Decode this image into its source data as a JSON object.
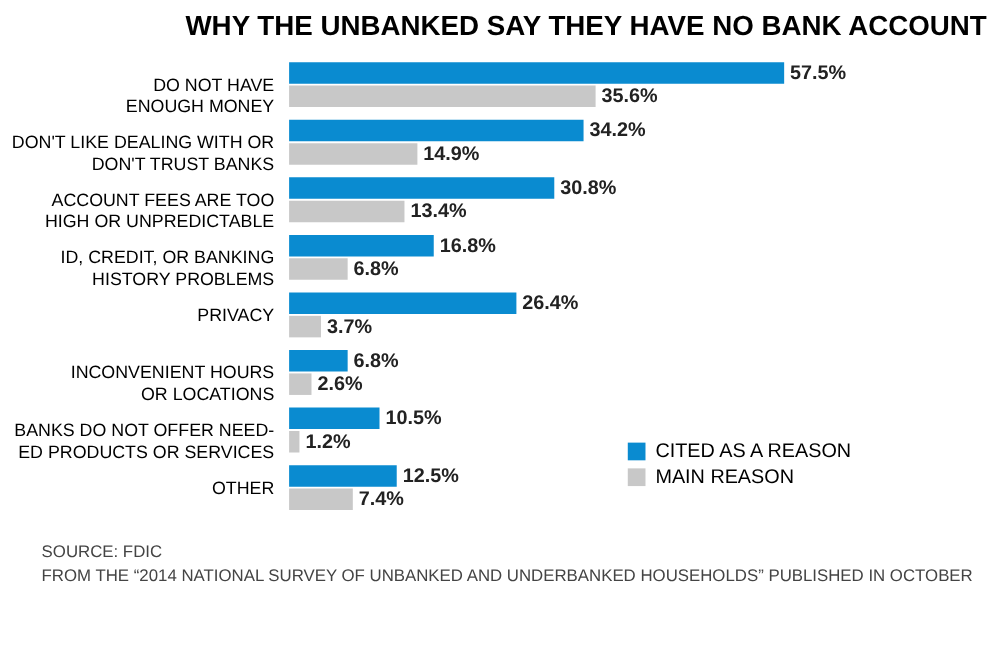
{
  "chart_data": {
    "type": "bar",
    "orientation": "horizontal",
    "title": "WHY THE UNBANKED SAY THEY HAVE NO BANK ACCOUNT",
    "categories": [
      "DO NOT HAVE\nENOUGH MONEY",
      "DON'T LIKE DEALING WITH OR\nDON'T TRUST BANKS",
      "ACCOUNT FEES ARE TOO\nHIGH OR UNPREDICTABLE",
      "ID, CREDIT, OR BANKING\nHISTORY PROBLEMS",
      "PRIVACY",
      "INCONVENIENT HOURS\nOR LOCATIONS",
      "BANKS DO NOT OFFER NEED-\nED PRODUCTS OR SERVICES",
      "OTHER"
    ],
    "series": [
      {
        "name": "CITED AS A REASON",
        "color": "#0a8bd0",
        "values": [
          57.5,
          34.2,
          30.8,
          16.8,
          26.4,
          6.8,
          10.5,
          12.5
        ],
        "value_labels": [
          "57.5%",
          "34.2%",
          "30.8%",
          "16.8%",
          "26.4%",
          "6.8%",
          "10.5%",
          "12.5%"
        ]
      },
      {
        "name": "MAIN REASON",
        "color": "#c8c8c8",
        "values": [
          35.6,
          14.9,
          13.4,
          6.8,
          3.7,
          2.6,
          1.2,
          7.4
        ],
        "value_labels": [
          "35.6%",
          "14.9%",
          "13.4%",
          "6.8%",
          "3.7%",
          "2.6%",
          "1.2%",
          "7.4%"
        ]
      }
    ],
    "legend": "bottom right",
    "annotations": [
      "SOURCE: FDIC",
      "FROM THE “2014 NATIONAL SURVEY OF UNBANKED AND UNDERBANKED HOUSEHOLDS” PUBLISHED IN OCTOBER"
    ]
  }
}
